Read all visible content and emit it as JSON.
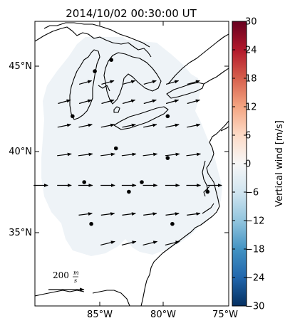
{
  "title": "2014/10/02 00:30:00 UT",
  "map": {
    "lat_ticks": [
      "45°N",
      "40°N",
      "35°N"
    ],
    "lon_ticks": [
      "85°W",
      "80°W",
      "75°W"
    ],
    "extent": {
      "lon_min": -91.3,
      "lon_max": -74.8,
      "lat_min": 30.2,
      "lat_max": 47.9
    },
    "colors": {
      "coast": "#000000",
      "data_field": "#eef3f7",
      "arrow": "#000000",
      "station": "#000000"
    },
    "stations": [
      {
        "lon": -86.2,
        "lat": 44.8
      },
      {
        "lon": -84.8,
        "lat": 45.5
      },
      {
        "lon": -88.1,
        "lat": 42.0
      },
      {
        "lon": -80.0,
        "lat": 42.0
      },
      {
        "lon": -84.4,
        "lat": 40.0
      },
      {
        "lon": -80.0,
        "lat": 39.4
      },
      {
        "lon": -87.1,
        "lat": 37.9
      },
      {
        "lon": -82.2,
        "lat": 37.9
      },
      {
        "lon": -83.3,
        "lat": 37.3
      },
      {
        "lon": -76.6,
        "lat": 37.3
      },
      {
        "lon": -86.5,
        "lat": 35.3
      },
      {
        "lon": -79.6,
        "lat": 35.3
      }
    ],
    "wind_vectors": [
      {
        "lat": 44.1,
        "lons": [
          -87.0,
          -85.1,
          -83.3,
          -81.5,
          -79.6,
          -77.8
        ],
        "u_ms": 70,
        "v_ms": 20
      },
      {
        "lat": 42.9,
        "lons": [
          -88.8,
          -87.0,
          -85.1,
          -83.3,
          -81.5,
          -79.6,
          -77.8
        ],
        "u_ms": 70,
        "v_ms": 20
      },
      {
        "lat": 41.4,
        "lons": [
          -88.8,
          -87.0,
          -85.1,
          -83.3,
          -81.5,
          -79.6,
          -77.8
        ],
        "u_ms": 75,
        "v_ms": 15
      },
      {
        "lat": 39.6,
        "lons": [
          -88.8,
          -87.0,
          -85.1,
          -83.3,
          -81.5,
          -79.6,
          -77.8
        ],
        "u_ms": 80,
        "v_ms": 10
      },
      {
        "lat": 37.7,
        "lons": [
          -90.8,
          -88.8,
          -87.0,
          -85.1,
          -83.3,
          -81.5,
          -79.6,
          -77.8,
          -76.0
        ],
        "u_ms": 80,
        "v_ms": 0
      },
      {
        "lat": 35.9,
        "lons": [
          -87.0,
          -85.1,
          -83.3,
          -81.5,
          -79.6,
          -77.8
        ],
        "u_ms": 75,
        "v_ms": 10
      },
      {
        "lat": 34.1,
        "lons": [
          -85.1,
          -83.3,
          -81.5,
          -79.6
        ],
        "u_ms": 80,
        "v_ms": 20
      }
    ],
    "reference_vector": {
      "label": "200 m/s",
      "label_value": "200",
      "label_unit_num": "m",
      "label_unit_den": "s",
      "magnitude_ms": 200
    }
  },
  "colorbar": {
    "label": "Vertical wind [m/s]",
    "ticks": [
      "30",
      "24",
      "18",
      "12",
      "6",
      "0",
      "−6",
      "−12",
      "−18",
      "−24",
      "−30"
    ],
    "vmin": -30,
    "vmax": 30,
    "cmap_stops": [
      "#053061",
      "#2166ac",
      "#4393c3",
      "#92c5de",
      "#d1e5f0",
      "#f7f7f7",
      "#fddbc7",
      "#f4a582",
      "#d6604d",
      "#b2182b",
      "#67001f"
    ]
  }
}
